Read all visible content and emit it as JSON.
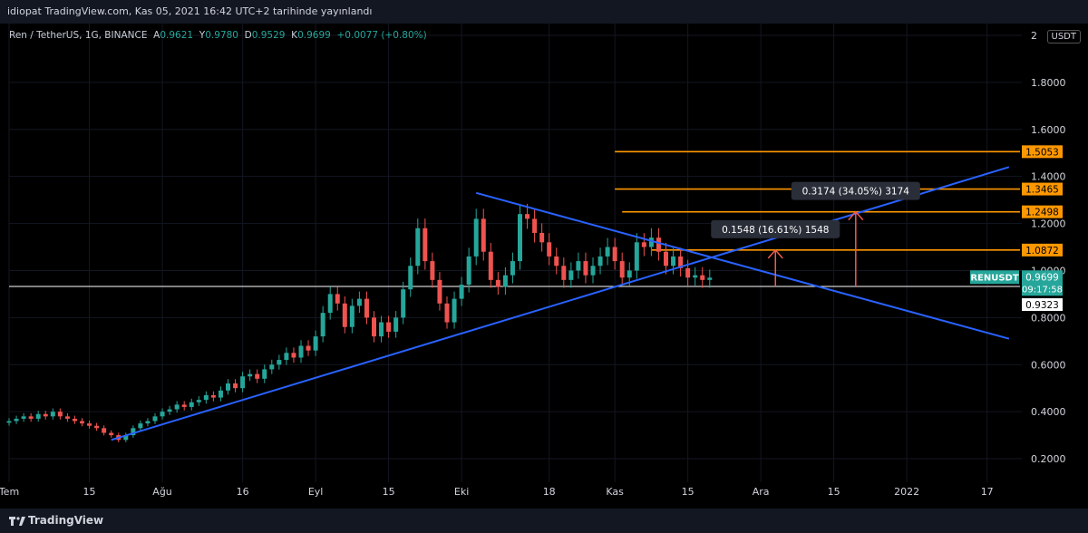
{
  "header": {
    "publish_text": "idiopat TradingView.com, Kas 05, 2021 16:42 UTC+2 tarihinde yayınlandı"
  },
  "legend": {
    "symbol": "Ren / TetherUS, 1G, BINANCE",
    "o_label": "A",
    "o_value": "0.9621",
    "h_label": "Y",
    "h_value": "0.9780",
    "l_label": "D",
    "l_value": "0.9529",
    "c_label": "K",
    "c_value": "0.9699",
    "change": "+0.0077 (+0.80%)"
  },
  "currency_button": "USDT",
  "footer": {
    "brand": "TradingView",
    "logo_icon": "tradingview-logo-icon"
  },
  "colors": {
    "up": "#26a69a",
    "down": "#ef5350",
    "trend": "#2962ff",
    "level": "#ff9800",
    "arrow": "#f05a4f"
  },
  "chart_data": {
    "type": "candlestick",
    "symbol": "RENUSDT",
    "ylim": [
      0.1,
      2.05
    ],
    "y_ticks": [
      {
        "v": 2.0,
        "t": "2"
      },
      {
        "v": 1.8,
        "t": "1.8000"
      },
      {
        "v": 1.6,
        "t": "1.6000"
      },
      {
        "v": 1.4,
        "t": "1.4000"
      },
      {
        "v": 1.2,
        "t": "1.2000"
      },
      {
        "v": 1.0,
        "t": "1.0000"
      },
      {
        "v": 0.8,
        "t": "0.8000"
      },
      {
        "v": 0.6,
        "t": "0.6000"
      },
      {
        "v": 0.4,
        "t": "0.4000"
      },
      {
        "v": 0.2,
        "t": "0.2000"
      }
    ],
    "x_ticks": [
      {
        "i": 0,
        "t": "Tem"
      },
      {
        "i": 11,
        "t": "15"
      },
      {
        "i": 21,
        "t": "Ağu"
      },
      {
        "i": 32,
        "t": "16"
      },
      {
        "i": 42,
        "t": "Eyl"
      },
      {
        "i": 52,
        "t": "15"
      },
      {
        "i": 62,
        "t": "Eki"
      },
      {
        "i": 74,
        "t": "18"
      },
      {
        "i": 83,
        "t": "Kas"
      },
      {
        "i": 93,
        "t": "15"
      },
      {
        "i": 103,
        "t": "Ara"
      },
      {
        "i": 113,
        "t": "15"
      },
      {
        "i": 123,
        "t": "2022"
      },
      {
        "i": 134,
        "t": "17"
      }
    ],
    "closes": [
      0.36,
      0.37,
      0.38,
      0.37,
      0.39,
      0.38,
      0.4,
      0.38,
      0.37,
      0.36,
      0.35,
      0.34,
      0.33,
      0.31,
      0.3,
      0.28,
      0.3,
      0.33,
      0.35,
      0.36,
      0.38,
      0.4,
      0.41,
      0.43,
      0.42,
      0.44,
      0.45,
      0.47,
      0.46,
      0.49,
      0.52,
      0.5,
      0.55,
      0.56,
      0.54,
      0.58,
      0.6,
      0.62,
      0.65,
      0.63,
      0.68,
      0.66,
      0.72,
      0.82,
      0.9,
      0.86,
      0.76,
      0.85,
      0.88,
      0.8,
      0.72,
      0.78,
      0.74,
      0.8,
      0.92,
      1.02,
      1.18,
      1.04,
      0.96,
      0.86,
      0.78,
      0.88,
      0.94,
      1.06,
      1.22,
      1.08,
      0.96,
      0.93,
      0.98,
      1.04,
      1.24,
      1.22,
      1.16,
      1.12,
      1.06,
      1.02,
      0.96,
      1.0,
      1.04,
      0.98,
      1.02,
      1.06,
      1.1,
      1.04,
      0.97,
      1.0,
      1.12,
      1.1,
      1.14,
      1.08,
      1.02,
      1.06,
      1.01,
      0.97,
      0.98,
      0.96,
      0.9699
    ],
    "current_price": {
      "label": "RENUSDT",
      "price": "0.9699",
      "timer": "09:17:58",
      "value": 0.9699
    },
    "support_level": {
      "value": 0.9323,
      "label": "0.9323"
    },
    "levels": [
      {
        "value": 1.5053,
        "label": "1.5053",
        "from": 83
      },
      {
        "value": 1.3465,
        "label": "1.3465",
        "from": 83
      },
      {
        "value": 1.2498,
        "label": "1.2498",
        "from": 84
      },
      {
        "value": 1.0872,
        "label": "1.0872",
        "from": 88
      }
    ],
    "trendlines": [
      {
        "x1": 14,
        "y1": 0.28,
        "x2": 137,
        "y2": 1.44
      },
      {
        "x1": 64,
        "y1": 1.33,
        "x2": 137,
        "y2": 0.71
      }
    ],
    "measurements": [
      {
        "x": 105,
        "y_from": 0.9323,
        "y_to": 1.0872,
        "label": "0.1548 (16.61%) 1548"
      },
      {
        "x": 116,
        "y_from": 0.9323,
        "y_to": 1.2498,
        "label": "0.3174 (34.05%) 3174"
      }
    ]
  }
}
